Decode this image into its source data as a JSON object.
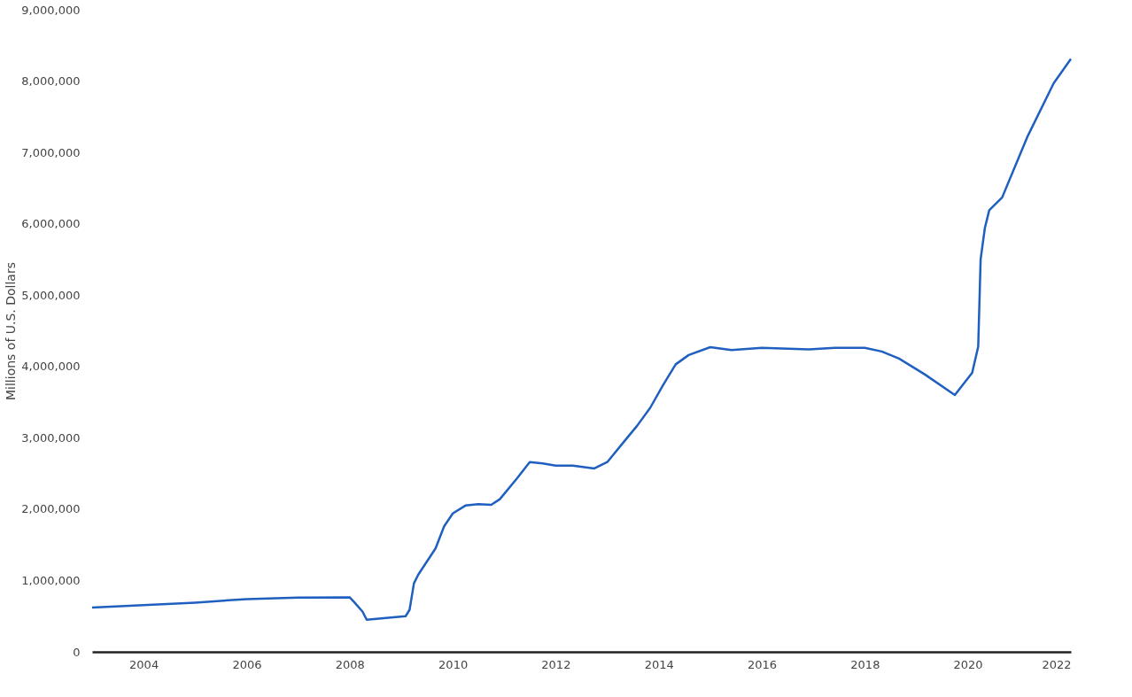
{
  "chart_data": {
    "type": "line",
    "ylabel": "Millions of U.S. Dollars",
    "x": [
      "2003-01",
      "2005-01",
      "2006-01",
      "2007-01",
      "2008-01",
      "2008-02",
      "2008-04",
      "2008-05",
      "2009-02",
      "2009-03",
      "2009-04",
      "2009-05",
      "2009-09",
      "2009-11",
      "2010-01",
      "2010-04",
      "2010-07",
      "2010-10",
      "2010-12",
      "2011-04",
      "2011-07",
      "2011-10",
      "2012-01",
      "2012-05",
      "2012-10",
      "2013-01",
      "2013-05",
      "2013-08",
      "2013-11",
      "2014-02",
      "2014-05",
      "2014-08",
      "2015-01",
      "2015-06",
      "2016-01",
      "2016-12",
      "2017-06",
      "2018-01",
      "2018-05",
      "2018-09",
      "2019-03",
      "2019-10",
      "2020-02",
      "2020-03-15",
      "2020-04-01",
      "2020-05",
      "2020-06",
      "2020-09",
      "2021-03",
      "2021-09",
      "2022-01"
    ],
    "series": [
      {
        "color": "#1f5fbf",
        "values": [
          620000,
          690000,
          740000,
          760000,
          765000,
          700000,
          565000,
          450000,
          500000,
          590000,
          960000,
          1080000,
          1450000,
          1760000,
          1940000,
          2050000,
          2070000,
          2060000,
          2140000,
          2430000,
          2660000,
          2640000,
          2610000,
          2610000,
          2570000,
          2660000,
          2950000,
          3170000,
          3420000,
          3740000,
          4030000,
          4160000,
          4270000,
          4230000,
          4260000,
          4240000,
          4260000,
          4260000,
          4210000,
          4110000,
          3890000,
          3600000,
          3910000,
          4280000,
          5500000,
          5940000,
          6190000,
          6370000,
          7230000,
          7970000,
          8310000
        ]
      }
    ],
    "xlim": [
      "2003-01",
      "2022-01"
    ],
    "xticks": [
      "2004",
      "2006",
      "2008",
      "2010",
      "2012",
      "2014",
      "2016",
      "2018",
      "2020",
      "2022"
    ],
    "ylim": [
      0,
      9000000
    ],
    "yticks": [
      0,
      {
        "value": 1000000,
        "label": "1,000,000"
      },
      {
        "value": 2000000,
        "label": "2,000,000"
      },
      {
        "value": 3000000,
        "label": "3,000,000"
      },
      {
        "value": 4000000,
        "label": "4,000,000"
      },
      {
        "value": 5000000,
        "label": "5,000,000"
      },
      {
        "value": 6000000,
        "label": "6,000,000"
      },
      {
        "value": 7000000,
        "label": "7,000,000"
      },
      {
        "value": 8000000,
        "label": "8,000,000"
      },
      {
        "value": 9000000,
        "label": "9,000,000"
      }
    ],
    "grid": false,
    "legend": false,
    "marker": "none",
    "line_style": "solid"
  }
}
